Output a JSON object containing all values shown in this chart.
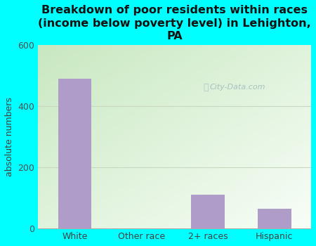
{
  "title": "Breakdown of poor residents within races\n(income below poverty level) in Lehighton,\nPA",
  "categories": [
    "White",
    "Other race",
    "2+ races",
    "Hispanic"
  ],
  "values": [
    490,
    0,
    110,
    65
  ],
  "bar_color": "#b09cc8",
  "ylabel": "absolute numbers",
  "ylim": [
    0,
    600
  ],
  "yticks": [
    0,
    200,
    400,
    600
  ],
  "background_outer": "#00ffff",
  "grad_top_left": "#c8e8c0",
  "grad_bottom_right": "#f0faf0",
  "gridline_color": "#c8d8c0",
  "watermark": "City-Data.com",
  "title_fontsize": 11.5,
  "ylabel_fontsize": 9,
  "tick_fontsize": 9,
  "bar_width": 0.5,
  "xlim": [
    -0.55,
    3.55
  ]
}
